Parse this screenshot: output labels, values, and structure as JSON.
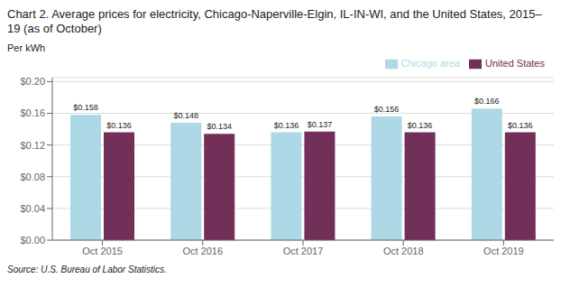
{
  "chart_data": {
    "type": "bar",
    "title": "Chart 2. Average prices for electricity, Chicago-Naperville-Elgin, IL-IN-WI, and the United States, 2015–19  (as of October)",
    "ylabel": "Per kWh",
    "source": "Source: U.S. Bureau of Labor Statistics.",
    "categories": [
      "Oct 2015",
      "Oct 2016",
      "Oct 2017",
      "Oct 2018",
      "Oct 2019"
    ],
    "series": [
      {
        "name": "Chicago area",
        "color": "#ADD8E6",
        "values": [
          0.158,
          0.148,
          0.136,
          0.156,
          0.166
        ],
        "value_labels": [
          "$0.158",
          "$0.148",
          "$0.136",
          "$0.156",
          "$0.166"
        ]
      },
      {
        "name": "United States",
        "color": "#722F57",
        "values": [
          0.136,
          0.134,
          0.137,
          0.136,
          0.136
        ],
        "value_labels": [
          "$0.136",
          "$0.134",
          "$0.137",
          "$0.136",
          "$0.136"
        ]
      }
    ],
    "ylim": [
      0.0,
      0.205
    ],
    "yticks": [
      {
        "value": 0.0,
        "label": "$0.00"
      },
      {
        "value": 0.04,
        "label": "$0.04"
      },
      {
        "value": 0.08,
        "label": "$0.08"
      },
      {
        "value": 0.12,
        "label": "$0.12"
      },
      {
        "value": 0.16,
        "label": "$0.16"
      },
      {
        "value": 0.2,
        "label": "$0.20"
      }
    ],
    "grid": true,
    "legend": "upper right",
    "data_labels": true
  }
}
